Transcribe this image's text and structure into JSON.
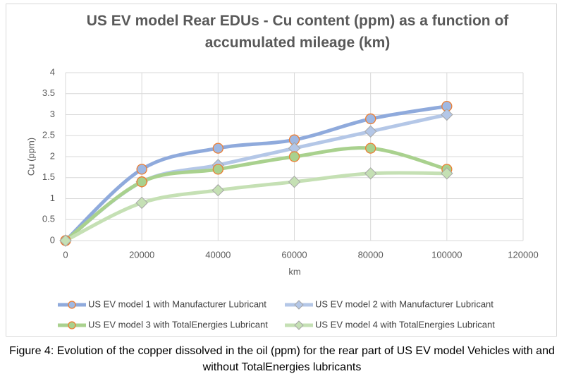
{
  "chart_data": {
    "type": "scatter-smooth",
    "title": "US EV model Rear EDUs - Cu content (ppm) as a function of accumulated mileage (km)",
    "x_label": "km",
    "y_label": "Cu (ppm)",
    "caption": "Figure 4: Evolution of the copper dissolved in the oil (ppm) for the rear part of US EV model Vehicles with and without TotalEnergies lubricants",
    "x": [
      0,
      20000,
      40000,
      60000,
      80000,
      100000
    ],
    "series": [
      {
        "name": "US EV model 1 with Manufacturer Lubricant",
        "color": "#8faadc",
        "marker": "circle",
        "marker_fill": "#9fb8e3",
        "marker_edge": "#ed7d31",
        "values": [
          0,
          1.7,
          2.2,
          2.4,
          2.9,
          3.2
        ]
      },
      {
        "name": "US EV model 2 with Manufacturer Lubricant",
        "color": "#b4c7e7",
        "marker": "diamond",
        "marker_fill": "#b4c7e7",
        "marker_edge": "#a5a5a5",
        "values": [
          0,
          1.4,
          1.8,
          2.2,
          2.6,
          3.0
        ]
      },
      {
        "name": "US EV model 3 with TotalEnergies Lubricant",
        "color": "#a9d18e",
        "marker": "circle",
        "marker_fill": "#a9d18e",
        "marker_edge": "#ed7d31",
        "values": [
          0,
          1.4,
          1.7,
          2.0,
          2.2,
          1.7
        ]
      },
      {
        "name": "US EV model 4 with TotalEnergies Lubricant",
        "color": "#c5e0b4",
        "marker": "diamond",
        "marker_fill": "#c5e0b4",
        "marker_edge": "#a5a5a5",
        "values": [
          0,
          0.9,
          1.2,
          1.4,
          1.6,
          1.6
        ]
      }
    ],
    "xlim": [
      0,
      120000
    ],
    "xticks": [
      0,
      20000,
      40000,
      60000,
      80000,
      100000,
      120000
    ],
    "ylim": [
      0,
      4
    ],
    "yticks": [
      0,
      0.5,
      1,
      1.5,
      2,
      2.5,
      3,
      3.5,
      4
    ],
    "grid": true,
    "legend": "bottom"
  }
}
